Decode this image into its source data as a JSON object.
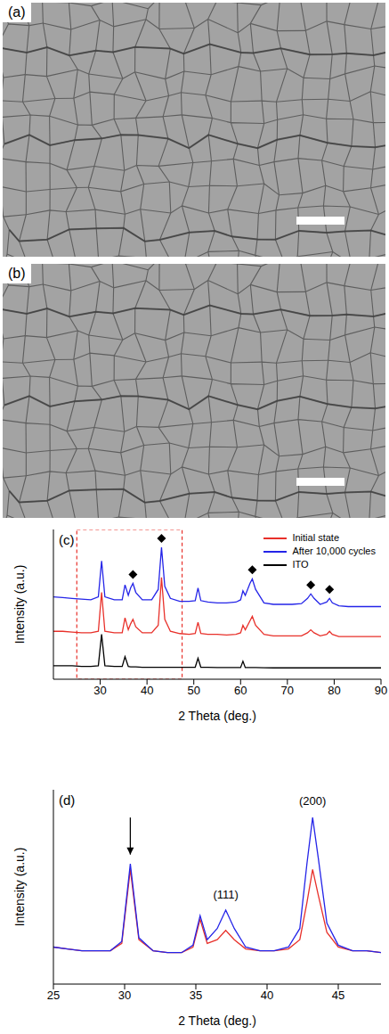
{
  "images": [
    {
      "label": "(a)"
    },
    {
      "label": "(b)"
    }
  ],
  "chart_data": [
    {
      "label": "(c)",
      "type": "line",
      "xlabel": "2 Theta (deg.)",
      "ylabel": "Intensity (a.u.)",
      "xlim": [
        20,
        90
      ],
      "xticks": [
        30,
        40,
        50,
        60,
        70,
        80,
        90
      ],
      "ylim": [
        0,
        100
      ],
      "tick_labels": "x",
      "legend": "upper right",
      "x": [
        20,
        22,
        24,
        26,
        28,
        29.6,
        30.3,
        31,
        33,
        34.7,
        35.3,
        36,
        36.5,
        37,
        37.6,
        39,
        41,
        42.4,
        43.1,
        43.8,
        45,
        47,
        49,
        50.3,
        50.9,
        51.5,
        53,
        55,
        57,
        59,
        60,
        60.5,
        61,
        62,
        62.5,
        63.2,
        65,
        67,
        69,
        71,
        73,
        74.3,
        75,
        75.7,
        77,
        78.4,
        79,
        79.6,
        81,
        83,
        85,
        87,
        90
      ],
      "series": [
        {
          "name": "Initial state",
          "color": "#e8302a",
          "values": [
            32,
            32,
            31.5,
            31,
            31,
            32,
            58,
            32,
            31,
            31,
            41,
            33,
            37,
            40,
            35,
            31,
            31,
            36,
            68,
            40,
            32,
            30.5,
            30,
            30.5,
            38,
            30.5,
            30,
            30,
            29.5,
            30,
            31,
            36,
            33,
            39,
            42,
            36,
            30,
            29,
            29,
            29,
            29,
            31,
            33,
            31,
            29,
            30,
            32,
            30,
            28.5,
            28.5,
            28.5,
            28.5,
            28.5
          ]
        },
        {
          "name": "After 10,000 cycles",
          "color": "#2424e8",
          "values": [
            55,
            54.5,
            54,
            53.5,
            53,
            55,
            79,
            55,
            53,
            53,
            63,
            56,
            61,
            64,
            58,
            53,
            53,
            60,
            88,
            62,
            54,
            52,
            52,
            52.5,
            61,
            52.5,
            51.5,
            51,
            51,
            51.5,
            53,
            59,
            56,
            64,
            67,
            60,
            51,
            50,
            50,
            50,
            50.5,
            54,
            57,
            54,
            50,
            51.5,
            54,
            51,
            49,
            48.5,
            48.5,
            48.5,
            48.5
          ]
        },
        {
          "name": "ITO",
          "color": "#000000",
          "values": [
            9,
            9,
            9,
            8.5,
            8.5,
            9,
            30,
            9,
            8.5,
            8.5,
            15,
            8.5,
            8.3,
            8.3,
            8.3,
            8,
            8,
            8,
            8,
            8,
            8,
            8,
            8,
            8,
            14,
            8,
            8,
            7.8,
            7.8,
            7.8,
            7.8,
            12,
            7.8,
            7.8,
            7.8,
            7.8,
            7.7,
            7.6,
            7.6,
            7.6,
            7.6,
            7.6,
            7.6,
            7.6,
            7.6,
            7.6,
            7.6,
            7.6,
            7.6,
            7.6,
            7.6,
            7.6,
            7.6
          ]
        }
      ],
      "peak_markers": {
        "x": [
          37,
          43.1,
          62.5,
          75,
          79
        ],
        "values": [
          70,
          94,
          73,
          63,
          60
        ],
        "marker": "diamond",
        "color": "#000000"
      },
      "highlight": {
        "x": [
          25,
          47.5
        ],
        "color": "#e8302a",
        "line_style": "dashed"
      }
    },
    {
      "label": "(d)",
      "type": "line",
      "xlabel": "2 Theta (deg.)",
      "ylabel": "Intensity (a.u.)",
      "xlim": [
        25,
        48
      ],
      "xticks": [
        25,
        30,
        35,
        40,
        45
      ],
      "ylim": [
        0,
        105
      ],
      "tick_labels": "x",
      "x": [
        25,
        26,
        27,
        28,
        29,
        29.8,
        30.4,
        31,
        32,
        33,
        34,
        34.8,
        35.3,
        35.8,
        36.5,
        37.1,
        37.7,
        38.5,
        39.5,
        40.5,
        41.5,
        42.3,
        42.8,
        43.2,
        43.6,
        44.2,
        45,
        46,
        47,
        48
      ],
      "series": [
        {
          "color": "#e8302a",
          "values": [
            20,
            19,
            18,
            18,
            18,
            22,
            62,
            24,
            18,
            17,
            17,
            20,
            35,
            22,
            24,
            29,
            24,
            19,
            18,
            18,
            19,
            24,
            44,
            62,
            48,
            28,
            20,
            18,
            18,
            17
          ]
        },
        {
          "color": "#2424e8",
          "values": [
            20,
            19,
            18,
            18,
            18,
            23,
            65,
            25,
            18,
            17,
            17,
            21,
            37,
            24,
            30,
            40,
            30,
            20,
            18,
            18,
            20,
            30,
            65,
            90,
            68,
            33,
            21,
            18,
            18,
            17
          ]
        }
      ],
      "annotations": [
        {
          "text": "(111)",
          "x": 37.1,
          "y": 46
        },
        {
          "text": "(200)",
          "x": 43.2,
          "y": 97
        }
      ],
      "arrow": {
        "x": 30.4,
        "y": [
          90,
          70
        ]
      }
    }
  ]
}
